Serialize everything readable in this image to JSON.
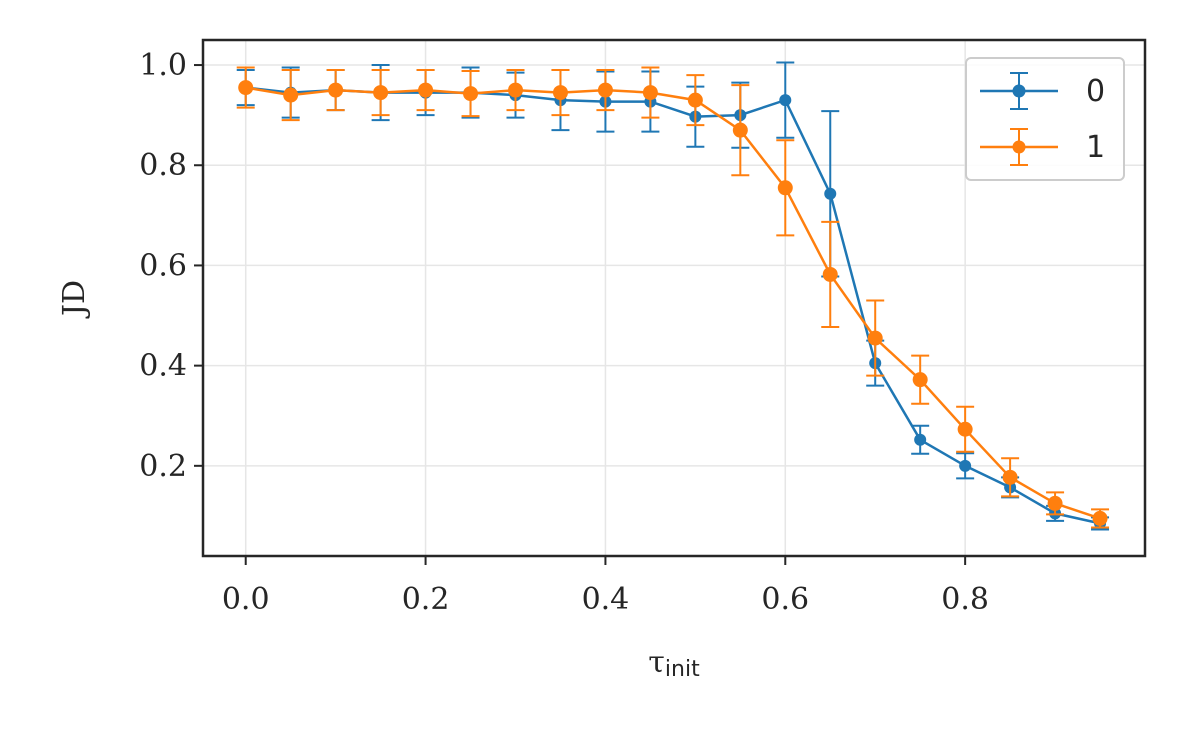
{
  "chart_data": {
    "type": "line",
    "xlabel_main": "τ",
    "xlabel_sub": "init",
    "ylabel": "JD",
    "xlim": [
      -0.0475,
      1.0
    ],
    "ylim": [
      0.02,
      1.05
    ],
    "xticks": [
      "0.0",
      "0.2",
      "0.4",
      "0.6",
      "0.8"
    ],
    "xtick_values": [
      0.0,
      0.2,
      0.4,
      0.6,
      0.8
    ],
    "yticks": [
      "0.2",
      "0.4",
      "0.6",
      "0.8",
      "1.0"
    ],
    "ytick_values": [
      0.2,
      0.4,
      0.6,
      0.8,
      1.0
    ],
    "grid": true,
    "legend_position": "top-right",
    "x": [
      0.0,
      0.05,
      0.1,
      0.15,
      0.2,
      0.25,
      0.3,
      0.35,
      0.4,
      0.45,
      0.5,
      0.55,
      0.6,
      0.65,
      0.7,
      0.75,
      0.8,
      0.85,
      0.9,
      0.95
    ],
    "series": [
      {
        "name": "0",
        "color": "#1f77b4",
        "values": [
          0.955,
          0.945,
          0.95,
          0.945,
          0.945,
          0.945,
          0.94,
          0.93,
          0.927,
          0.927,
          0.897,
          0.9,
          0.93,
          0.743,
          0.405,
          0.252,
          0.2,
          0.157,
          0.105,
          0.085
        ],
        "errors": [
          0.035,
          0.05,
          0.04,
          0.055,
          0.045,
          0.05,
          0.045,
          0.06,
          0.06,
          0.06,
          0.06,
          0.065,
          0.075,
          0.165,
          0.045,
          0.028,
          0.025,
          0.02,
          0.015,
          0.012
        ]
      },
      {
        "name": "1",
        "color": "#ff7f0e",
        "values": [
          0.955,
          0.94,
          0.95,
          0.945,
          0.95,
          0.943,
          0.95,
          0.945,
          0.95,
          0.945,
          0.93,
          0.87,
          0.755,
          0.582,
          0.455,
          0.372,
          0.273,
          0.177,
          0.125,
          0.095
        ],
        "errors": [
          0.04,
          0.05,
          0.04,
          0.045,
          0.04,
          0.045,
          0.04,
          0.045,
          0.04,
          0.05,
          0.05,
          0.09,
          0.095,
          0.105,
          0.075,
          0.048,
          0.045,
          0.038,
          0.022,
          0.018
        ]
      }
    ]
  }
}
